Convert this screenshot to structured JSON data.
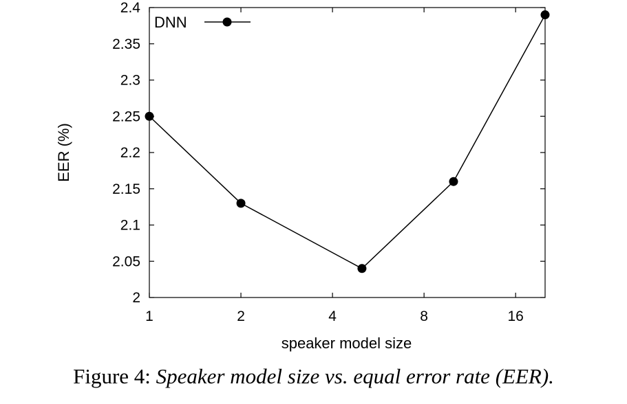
{
  "chart_data": {
    "type": "line",
    "xlabel": "speaker model size",
    "ylabel": "EER (%)",
    "x_scale": "log2",
    "xlim": [
      1,
      20
    ],
    "ylim": [
      2,
      2.4
    ],
    "x_ticks": [
      1,
      2,
      4,
      8,
      16
    ],
    "x_tick_labels": [
      "1",
      "2",
      "4",
      "8",
      "16"
    ],
    "y_ticks": [
      2,
      2.05,
      2.1,
      2.15,
      2.2,
      2.25,
      2.3,
      2.35,
      2.4
    ],
    "y_tick_labels": [
      "2",
      "2.05",
      "2.1",
      "2.15",
      "2.2",
      "2.25",
      "2.3",
      "2.35",
      "2.4"
    ],
    "grid": false,
    "legend_position": "top-left",
    "series": [
      {
        "name": "DNN",
        "x": [
          1,
          2,
          5,
          10,
          20
        ],
        "y": [
          2.25,
          2.13,
          2.04,
          2.16,
          2.39
        ],
        "color": "#000000",
        "marker": "circle"
      }
    ]
  },
  "caption": {
    "prefix": "Figure 4:",
    "text": "Speaker model size vs. equal error rate (EER)."
  }
}
